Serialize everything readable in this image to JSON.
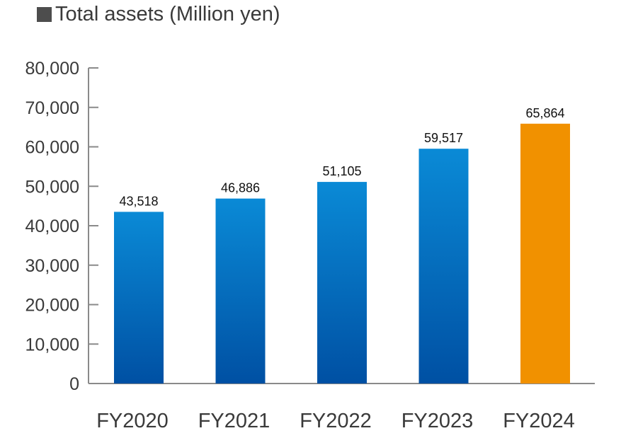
{
  "chart_data": {
    "type": "bar",
    "title": "Total assets (Million yen)",
    "categories": [
      "FY2020",
      "FY2021",
      "FY2022",
      "FY2023",
      "FY2024"
    ],
    "values": [
      43518,
      46886,
      51105,
      59517,
      65864
    ],
    "value_labels": [
      "43,518",
      "46,886",
      "51,105",
      "59,517",
      "65,864"
    ],
    "ylim": [
      0,
      80000
    ],
    "yticks": [
      0,
      10000,
      20000,
      30000,
      40000,
      50000,
      60000,
      70000,
      80000
    ],
    "ytick_labels": [
      "0",
      "10,000",
      "20,000",
      "30,000",
      "40,000",
      "50,000",
      "60,000",
      "70,000",
      "80,000"
    ],
    "grid": false,
    "highlight_index": 4,
    "colors": {
      "bar_top": "#0a8ad6",
      "bar_bottom": "#0050a3",
      "highlight": "#f19100",
      "axis": "#8a8a8a"
    }
  }
}
